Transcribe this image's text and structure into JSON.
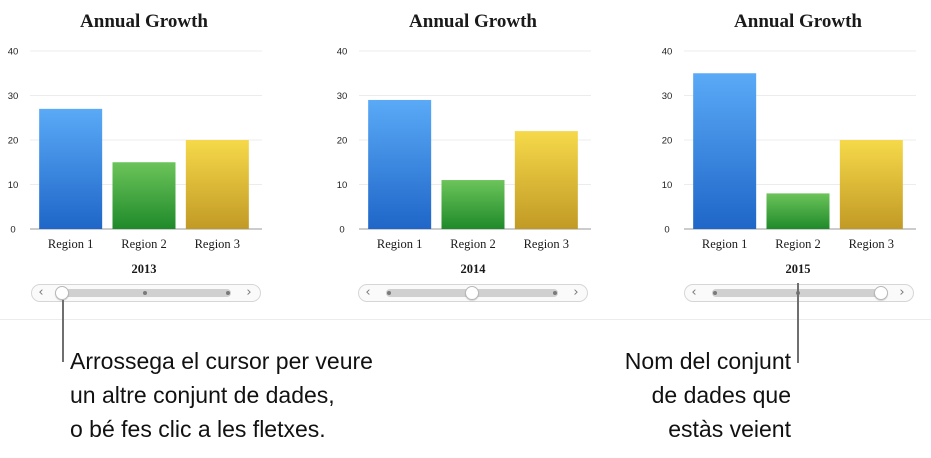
{
  "chart_data": [
    {
      "type": "bar",
      "title": "Annual Growth",
      "dataset_label": "2013",
      "categories": [
        "Region 1",
        "Region 2",
        "Region 3"
      ],
      "values": [
        27,
        15,
        20
      ],
      "ylim": [
        0,
        40
      ],
      "yticks": [
        "0",
        "10",
        "20",
        "30",
        "40"
      ],
      "grid": true
    },
    {
      "type": "bar",
      "title": "Annual Growth",
      "dataset_label": "2014",
      "categories": [
        "Region 1",
        "Region 2",
        "Region 3"
      ],
      "values": [
        29,
        11,
        22
      ],
      "ylim": [
        0,
        40
      ],
      "yticks": [
        "0",
        "10",
        "20",
        "30",
        "40"
      ],
      "grid": true
    },
    {
      "type": "bar",
      "title": "Annual Growth",
      "dataset_label": "2015",
      "categories": [
        "Region 1",
        "Region 2",
        "Region 3"
      ],
      "values": [
        35,
        8,
        20
      ],
      "ylim": [
        0,
        40
      ],
      "yticks": [
        "0",
        "10",
        "20",
        "30",
        "40"
      ],
      "grid": true
    }
  ],
  "bar_colors": [
    [
      "#5aaaf7",
      "#1f66c8"
    ],
    [
      "#6cc45a",
      "#1f8a2a"
    ],
    [
      "#f6d94a",
      "#c19a25"
    ]
  ],
  "sliders": [
    {
      "position": 0.0,
      "prev_icon": "chevron-left-icon",
      "next_icon": "chevron-right-icon"
    },
    {
      "position": 0.5,
      "prev_icon": "chevron-left-icon",
      "next_icon": "chevron-right-icon"
    },
    {
      "position": 1.0,
      "prev_icon": "chevron-left-icon",
      "next_icon": "chevron-right-icon"
    }
  ],
  "callouts": {
    "left": [
      "Arrossega el cursor per veure",
      "un altre conjunt de dades,",
      "o bé fes clic a les fletxes."
    ],
    "right": [
      "Nom del conjunt",
      "de dades que",
      "estàs veient"
    ]
  }
}
